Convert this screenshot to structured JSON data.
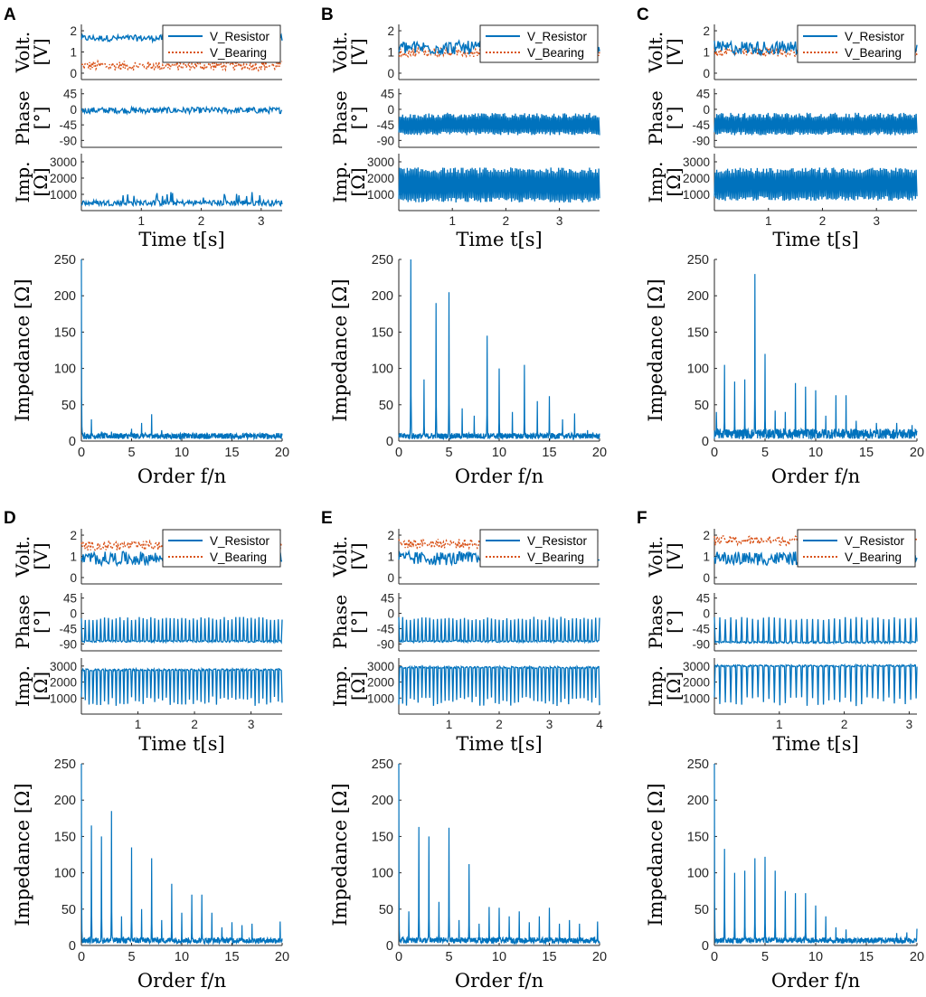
{
  "colors": {
    "resistor": "#0072BD",
    "bearing": "#D95319",
    "axis": "#262626"
  },
  "labels": {
    "volt": "Volt.",
    "volt_unit": "[V]",
    "phase": "Phase",
    "phase_unit": "[°]",
    "imp": "Imp.",
    "imp_unit": "[Ω]",
    "time_axis": "Time t[s]",
    "impedance_axis": "Impedance [Ω]",
    "order_axis": "Order f/n"
  },
  "legend": [
    "V_Resistor",
    "V_Bearing"
  ],
  "chart_data": [
    {
      "panel": "A",
      "type": "line",
      "time_series": {
        "xlim": [
          0,
          3.35
        ],
        "xticks": [
          1,
          2,
          3
        ],
        "voltage": {
          "ylim": [
            -0.3,
            2.3
          ],
          "yticks": [
            0,
            1,
            2
          ],
          "resistor_mean": 1.65,
          "bearing_mean": 0.35
        },
        "phase": {
          "ylim": [
            -110,
            60
          ],
          "yticks": [
            45,
            0,
            -45,
            -90
          ],
          "baseline": -3
        },
        "impedance": {
          "ylim": [
            0,
            3500
          ],
          "yticks": [
            1000,
            2000,
            3000
          ],
          "baseline": 300
        }
      },
      "spectrum": {
        "xlim": [
          0,
          20
        ],
        "ylim": [
          0,
          250
        ],
        "xticks": [
          0,
          5,
          10,
          15,
          20
        ],
        "yticks": [
          0,
          50,
          100,
          150,
          200,
          250
        ],
        "peaks": [
          [
            0,
            250
          ],
          [
            0.3,
            12
          ],
          [
            1,
            30
          ],
          [
            2,
            13
          ],
          [
            3,
            13
          ],
          [
            4,
            10
          ],
          [
            5,
            17
          ],
          [
            6,
            25
          ],
          [
            7,
            37
          ],
          [
            8,
            15
          ],
          [
            10,
            10
          ],
          [
            12,
            8
          ],
          [
            15,
            6
          ],
          [
            18,
            9
          ],
          [
            19,
            7
          ]
        ]
      }
    },
    {
      "panel": "B",
      "type": "line",
      "time_series": {
        "xlim": [
          0,
          3.75
        ],
        "xticks": [
          1,
          2,
          3
        ],
        "voltage": {
          "ylim": [
            -0.3,
            2.3
          ],
          "yticks": [
            0,
            1,
            2
          ],
          "resistor_mean": 1.2,
          "bearing_mean": 1.0
        },
        "phase": {
          "ylim": [
            -110,
            60
          ],
          "yticks": [
            45,
            0,
            -45,
            -90
          ],
          "baseline": -75
        },
        "impedance": {
          "ylim": [
            0,
            3500
          ],
          "yticks": [
            1000,
            2000,
            3000
          ],
          "baseline": 500
        }
      },
      "spectrum": {
        "xlim": [
          0,
          20
        ],
        "ylim": [
          0,
          250
        ],
        "xticks": [
          0,
          5,
          10,
          15,
          20
        ],
        "yticks": [
          0,
          50,
          100,
          150,
          200,
          250
        ],
        "peaks": [
          [
            1.2,
            250
          ],
          [
            2.5,
            85
          ],
          [
            3.7,
            190
          ],
          [
            5,
            205
          ],
          [
            6.3,
            45
          ],
          [
            7.5,
            35
          ],
          [
            8.8,
            145
          ],
          [
            10,
            100
          ],
          [
            11.3,
            40
          ],
          [
            12.5,
            105
          ],
          [
            13.8,
            55
          ],
          [
            15,
            62
          ],
          [
            16.3,
            30
          ],
          [
            17.5,
            38
          ],
          [
            18.8,
            15
          ]
        ]
      }
    },
    {
      "panel": "C",
      "type": "line",
      "time_series": {
        "xlim": [
          0,
          3.75
        ],
        "xticks": [
          1,
          2,
          3
        ],
        "voltage": {
          "ylim": [
            -0.3,
            2.3
          ],
          "yticks": [
            0,
            1,
            2
          ],
          "resistor_mean": 1.2,
          "bearing_mean": 1.0
        },
        "phase": {
          "ylim": [
            -110,
            60
          ],
          "yticks": [
            45,
            0,
            -45,
            -90
          ],
          "baseline": -75
        },
        "impedance": {
          "ylim": [
            0,
            3500
          ],
          "yticks": [
            1000,
            2000,
            3000
          ],
          "baseline": 600
        }
      },
      "spectrum": {
        "xlim": [
          0,
          20
        ],
        "ylim": [
          0,
          250
        ],
        "xticks": [
          0,
          5,
          10,
          15,
          20
        ],
        "yticks": [
          0,
          50,
          100,
          150,
          200,
          250
        ],
        "peaks": [
          [
            0.2,
            40
          ],
          [
            1,
            105
          ],
          [
            2,
            82
          ],
          [
            3,
            85
          ],
          [
            4,
            230
          ],
          [
            5,
            120
          ],
          [
            6,
            42
          ],
          [
            7,
            40
          ],
          [
            8,
            80
          ],
          [
            9,
            75
          ],
          [
            10,
            70
          ],
          [
            11,
            35
          ],
          [
            12,
            63
          ],
          [
            13,
            63
          ],
          [
            14,
            28
          ],
          [
            16,
            25
          ],
          [
            18,
            25
          ],
          [
            19.5,
            22
          ]
        ]
      }
    },
    {
      "panel": "D",
      "type": "line",
      "time_series": {
        "xlim": [
          0,
          3.55
        ],
        "xticks": [
          1,
          2,
          3
        ],
        "voltage": {
          "ylim": [
            -0.3,
            2.3
          ],
          "yticks": [
            0,
            1,
            2
          ],
          "resistor_mean": 0.9,
          "bearing_mean": 1.5
        },
        "phase": {
          "ylim": [
            -110,
            60
          ],
          "yticks": [
            45,
            0,
            -45,
            -90
          ],
          "baseline": -85
        },
        "impedance": {
          "ylim": [
            0,
            3500
          ],
          "yticks": [
            1000,
            2000,
            3000
          ],
          "baseline": 2700
        }
      },
      "spectrum": {
        "xlim": [
          0,
          20
        ],
        "ylim": [
          0,
          250
        ],
        "xticks": [
          0,
          5,
          10,
          15,
          20
        ],
        "yticks": [
          0,
          50,
          100,
          150,
          200,
          250
        ],
        "peaks": [
          [
            0,
            250
          ],
          [
            1,
            165
          ],
          [
            2,
            150
          ],
          [
            3,
            185
          ],
          [
            4,
            40
          ],
          [
            5,
            135
          ],
          [
            6,
            50
          ],
          [
            7,
            120
          ],
          [
            8,
            35
          ],
          [
            9,
            85
          ],
          [
            10,
            45
          ],
          [
            11,
            70
          ],
          [
            12,
            70
          ],
          [
            13,
            45
          ],
          [
            14,
            25
          ],
          [
            15,
            32
          ],
          [
            16,
            28
          ],
          [
            17,
            30
          ],
          [
            19.8,
            33
          ]
        ]
      }
    },
    {
      "panel": "E",
      "type": "line",
      "time_series": {
        "xlim": [
          0,
          4.0
        ],
        "xticks": [
          1,
          2,
          3,
          4
        ],
        "voltage": {
          "ylim": [
            -0.3,
            2.3
          ],
          "yticks": [
            0,
            1,
            2
          ],
          "resistor_mean": 0.9,
          "bearing_mean": 1.6
        },
        "phase": {
          "ylim": [
            -110,
            60
          ],
          "yticks": [
            45,
            0,
            -45,
            -90
          ],
          "baseline": -85
        },
        "impedance": {
          "ylim": [
            0,
            3500
          ],
          "yticks": [
            1000,
            2000,
            3000
          ],
          "baseline": 2850
        }
      },
      "spectrum": {
        "xlim": [
          0,
          20
        ],
        "ylim": [
          0,
          250
        ],
        "xticks": [
          0,
          5,
          10,
          15,
          20
        ],
        "yticks": [
          0,
          50,
          100,
          150,
          200,
          250
        ],
        "peaks": [
          [
            0,
            250
          ],
          [
            1,
            47
          ],
          [
            2,
            163
          ],
          [
            3,
            150
          ],
          [
            4,
            60
          ],
          [
            5,
            162
          ],
          [
            6,
            35
          ],
          [
            7,
            112
          ],
          [
            8,
            30
          ],
          [
            9,
            53
          ],
          [
            10,
            52
          ],
          [
            11,
            40
          ],
          [
            12,
            47
          ],
          [
            13,
            32
          ],
          [
            14,
            40
          ],
          [
            15,
            52
          ],
          [
            16,
            30
          ],
          [
            17,
            35
          ],
          [
            18,
            30
          ],
          [
            19.8,
            33
          ]
        ]
      }
    },
    {
      "panel": "F",
      "type": "line",
      "time_series": {
        "xlim": [
          0,
          3.12
        ],
        "xticks": [
          1,
          2,
          3
        ],
        "voltage": {
          "ylim": [
            -0.3,
            2.3
          ],
          "yticks": [
            0,
            1,
            2
          ],
          "resistor_mean": 0.9,
          "bearing_mean": 1.75
        },
        "phase": {
          "ylim": [
            -110,
            60
          ],
          "yticks": [
            45,
            0,
            -45,
            -90
          ],
          "baseline": -88
        },
        "impedance": {
          "ylim": [
            0,
            3500
          ],
          "yticks": [
            1000,
            2000,
            3000
          ],
          "baseline": 2950
        }
      },
      "spectrum": {
        "xlim": [
          0,
          20
        ],
        "ylim": [
          0,
          250
        ],
        "xticks": [
          0,
          5,
          10,
          15,
          20
        ],
        "yticks": [
          0,
          50,
          100,
          150,
          200,
          250
        ],
        "peaks": [
          [
            0,
            250
          ],
          [
            1,
            133
          ],
          [
            2,
            100
          ],
          [
            3,
            103
          ],
          [
            4,
            120
          ],
          [
            5,
            122
          ],
          [
            6,
            103
          ],
          [
            7,
            75
          ],
          [
            8,
            72
          ],
          [
            9,
            72
          ],
          [
            10,
            55
          ],
          [
            11,
            40
          ],
          [
            12,
            25
          ],
          [
            13,
            22
          ],
          [
            14,
            8
          ],
          [
            16,
            5
          ],
          [
            18,
            17
          ],
          [
            19,
            18
          ],
          [
            20,
            23
          ]
        ]
      }
    }
  ]
}
